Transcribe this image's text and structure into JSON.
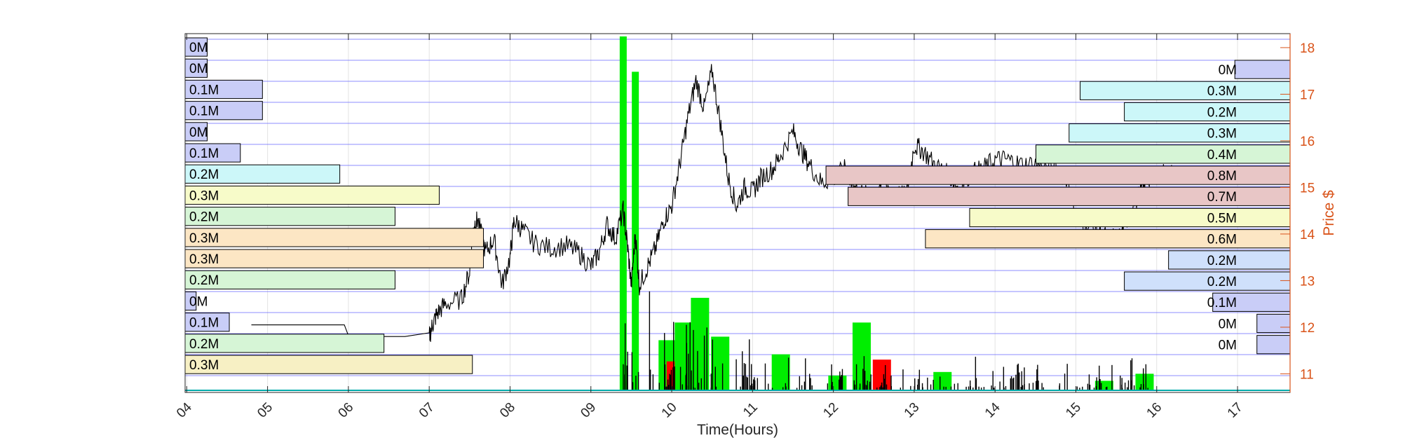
{
  "chart_data": {
    "type": "candlestick-volume-profile",
    "title": "",
    "xlabel": "Time(Hours)",
    "ylabel_right": "Price $",
    "x_range": [
      3.98,
      17.65
    ],
    "x_ticks": [
      "04",
      "05",
      "06",
      "07",
      "08",
      "09",
      "10",
      "11",
      "12",
      "13",
      "14",
      "15",
      "16",
      "17"
    ],
    "y_range": [
      10.6,
      18.3
    ],
    "y_ticks": [
      11,
      12,
      13,
      14,
      15,
      16,
      17,
      18
    ],
    "grid": true,
    "price_series": [
      [
        4.8,
        12.05
      ],
      [
        5.95,
        12.05
      ],
      [
        6.0,
        11.82
      ],
      [
        6.3,
        11.82
      ],
      [
        6.4,
        11.8
      ],
      [
        7.0,
        11.8
      ],
      [
        7.05,
        12.1
      ],
      [
        7.1,
        12.3
      ],
      [
        7.2,
        12.5
      ],
      [
        7.4,
        12.6
      ],
      [
        7.5,
        13.2
      ],
      [
        7.55,
        14.2
      ],
      [
        7.6,
        14.3
      ],
      [
        7.7,
        13.6
      ],
      [
        7.8,
        13.9
      ],
      [
        7.9,
        12.9
      ],
      [
        8.0,
        13.5
      ],
      [
        8.05,
        14.3
      ],
      [
        8.15,
        14.1
      ],
      [
        8.3,
        13.8
      ],
      [
        8.5,
        13.7
      ],
      [
        8.7,
        13.75
      ],
      [
        8.85,
        13.6
      ],
      [
        9.0,
        13.3
      ],
      [
        9.1,
        13.6
      ],
      [
        9.2,
        14.2
      ],
      [
        9.3,
        13.9
      ],
      [
        9.4,
        14.5
      ],
      [
        9.45,
        13.8
      ],
      [
        9.5,
        12.9
      ],
      [
        9.55,
        14.0
      ],
      [
        9.6,
        12.9
      ],
      [
        9.7,
        13.3
      ],
      [
        9.8,
        13.7
      ],
      [
        9.9,
        14.3
      ],
      [
        10.0,
        14.6
      ],
      [
        10.1,
        15.5
      ],
      [
        10.2,
        16.5
      ],
      [
        10.3,
        17.3
      ],
      [
        10.4,
        16.7
      ],
      [
        10.5,
        17.5
      ],
      [
        10.6,
        16.4
      ],
      [
        10.7,
        15.2
      ],
      [
        10.8,
        14.6
      ],
      [
        10.9,
        15.0
      ],
      [
        11.0,
        14.9
      ],
      [
        11.1,
        15.2
      ],
      [
        11.25,
        15.4
      ],
      [
        11.35,
        15.7
      ],
      [
        11.5,
        16.2
      ],
      [
        11.6,
        15.8
      ],
      [
        11.7,
        15.5
      ],
      [
        11.85,
        15.1
      ],
      [
        12.0,
        15.2
      ],
      [
        12.15,
        15.4
      ],
      [
        12.3,
        14.9
      ],
      [
        12.45,
        14.8
      ],
      [
        12.6,
        15.1
      ],
      [
        12.75,
        14.9
      ],
      [
        12.9,
        14.8
      ],
      [
        13.0,
        15.9
      ],
      [
        13.1,
        15.8
      ],
      [
        13.25,
        15.5
      ],
      [
        13.4,
        15.3
      ],
      [
        13.55,
        15.0
      ],
      [
        13.7,
        15.3
      ],
      [
        13.85,
        15.4
      ],
      [
        14.0,
        15.6
      ],
      [
        14.15,
        15.6
      ],
      [
        14.3,
        15.5
      ],
      [
        14.5,
        15.5
      ],
      [
        14.7,
        15.4
      ],
      [
        14.9,
        15.2
      ],
      [
        15.0,
        14.4
      ],
      [
        15.1,
        14.2
      ],
      [
        15.25,
        14.1
      ],
      [
        15.4,
        13.9
      ],
      [
        15.55,
        13.95
      ],
      [
        15.65,
        14.4
      ],
      [
        15.8,
        14.9
      ],
      [
        15.9,
        15.2
      ],
      [
        16.0,
        15.3
      ],
      [
        16.2,
        15.3
      ]
    ],
    "volume_bars": [
      {
        "x": 9.4,
        "h": 1.0,
        "color": "#00ee00"
      },
      {
        "x": 9.55,
        "h": 0.9,
        "color": "#00ee00"
      },
      {
        "x": 9.95,
        "h": 0.14,
        "color": "#00ee00"
      },
      {
        "x": 10.05,
        "h": 0.08,
        "color": "#ff0000"
      },
      {
        "x": 10.15,
        "h": 0.19,
        "color": "#00ee00"
      },
      {
        "x": 10.35,
        "h": 0.26,
        "color": "#00ee00"
      },
      {
        "x": 10.6,
        "h": 0.15,
        "color": "#00ee00"
      },
      {
        "x": 11.35,
        "h": 0.1,
        "color": "#00ee00"
      },
      {
        "x": 12.05,
        "h": 0.04,
        "color": "#00ee00"
      },
      {
        "x": 12.35,
        "h": 0.19,
        "color": "#00ee00"
      },
      {
        "x": 12.6,
        "h": 0.085,
        "color": "#ff0000"
      },
      {
        "x": 13.35,
        "h": 0.05,
        "color": "#00ee00"
      },
      {
        "x": 15.35,
        "h": 0.025,
        "color": "#00ee00"
      },
      {
        "x": 15.85,
        "h": 0.045,
        "color": "#00ee00"
      }
    ],
    "volume_profile_left": [
      {
        "label": "0M",
        "frac": 0.02,
        "color": "#c9cdf7"
      },
      {
        "label": "0M",
        "frac": 0.02,
        "color": "#c9cdf7"
      },
      {
        "label": "0.1M",
        "frac": 0.07,
        "color": "#c9cdf7"
      },
      {
        "label": "0.1M",
        "frac": 0.07,
        "color": "#c9cdf7"
      },
      {
        "label": "0M",
        "frac": 0.02,
        "color": "#c9cdf7"
      },
      {
        "label": "0.1M",
        "frac": 0.05,
        "color": "#c9cdf7"
      },
      {
        "label": "0.2M",
        "frac": 0.14,
        "color": "#ccf7f9"
      },
      {
        "label": "0.3M",
        "frac": 0.23,
        "color": "#f7fbc9"
      },
      {
        "label": "0.2M",
        "frac": 0.19,
        "color": "#d6f5d6"
      },
      {
        "label": "0.3M",
        "frac": 0.27,
        "color": "#fce6c4"
      },
      {
        "label": "0.3M",
        "frac": 0.27,
        "color": "#fce6c4"
      },
      {
        "label": "0.2M",
        "frac": 0.19,
        "color": "#d6f5d6"
      },
      {
        "label": "0M",
        "frac": 0.01,
        "color": "#c9cdf7"
      },
      {
        "label": "0.1M",
        "frac": 0.04,
        "color": "#c9cdf7"
      },
      {
        "label": "0.2M",
        "frac": 0.18,
        "color": "#d6f5d6"
      },
      {
        "label": "0.3M",
        "frac": 0.26,
        "color": "#f7f0c4"
      }
    ],
    "volume_profile_right": [
      {
        "label": "0M",
        "frac": 0.05,
        "color": "#c9cdf7"
      },
      {
        "label": "0.3M",
        "frac": 0.19,
        "color": "#ccf7f9"
      },
      {
        "label": "0.2M",
        "frac": 0.15,
        "color": "#ccf7f9"
      },
      {
        "label": "0.3M",
        "frac": 0.2,
        "color": "#ccf7f9"
      },
      {
        "label": "0.4M",
        "frac": 0.23,
        "color": "#d6f5d6"
      },
      {
        "label": "0.8M",
        "frac": 0.42,
        "color": "#e8c6c6"
      },
      {
        "label": "0.7M",
        "frac": 0.4,
        "color": "#e8c6c6"
      },
      {
        "label": "0.5M",
        "frac": 0.29,
        "color": "#f7fbc9"
      },
      {
        "label": "0.6M",
        "frac": 0.33,
        "color": "#fce6c4"
      },
      {
        "label": "0.2M",
        "frac": 0.11,
        "color": "#cfe0fb"
      },
      {
        "label": "0.2M",
        "frac": 0.15,
        "color": "#cfe0fb"
      },
      {
        "label": "0.1M",
        "frac": 0.07,
        "color": "#c9cdf7"
      },
      {
        "label": "0M",
        "frac": 0.03,
        "color": "#c9cdf7"
      },
      {
        "label": "0M",
        "frac": 0.03,
        "color": "#c9cdf7"
      }
    ],
    "colors": {
      "price_axis": "#d95319",
      "band_lines": "#6666ff",
      "up_volume": "#00ee00",
      "down_volume": "#ff0000",
      "price_line": "#000000"
    }
  }
}
